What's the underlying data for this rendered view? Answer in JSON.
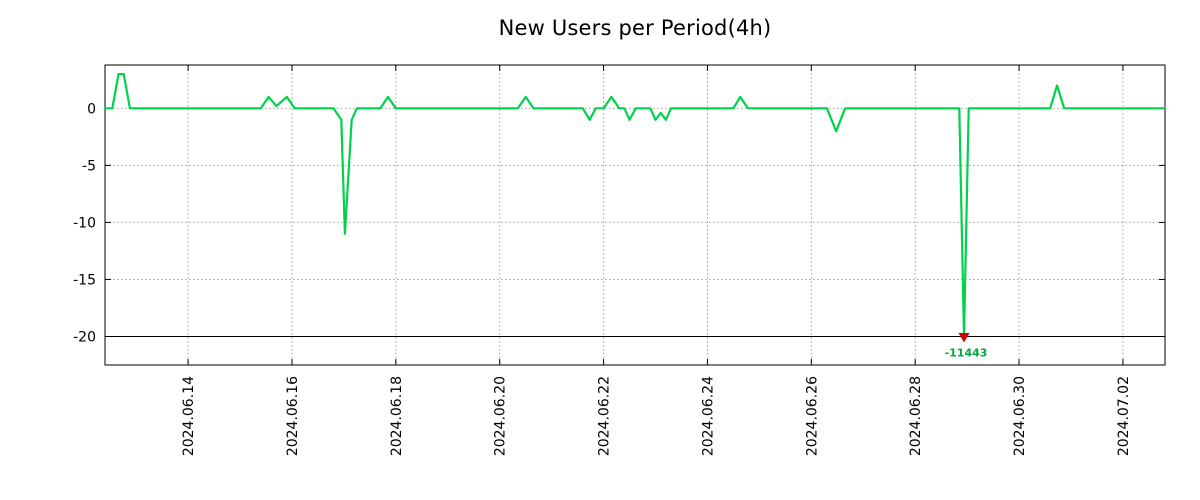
{
  "chart_data": {
    "type": "line",
    "title": "New Users per Period(4h)",
    "x_axis": {
      "unit": "days since 2024-06-13 00:00, 4h sampling period",
      "lim": [
        -0.6,
        19.81
      ],
      "ticks": [
        {
          "pos": 1,
          "label": "2024.06.14"
        },
        {
          "pos": 3,
          "label": "2024.06.16"
        },
        {
          "pos": 5,
          "label": "2024.06.18"
        },
        {
          "pos": 7,
          "label": "2024.06.20"
        },
        {
          "pos": 9,
          "label": "2024.06.22"
        },
        {
          "pos": 11,
          "label": "2024.06.24"
        },
        {
          "pos": 13,
          "label": "2024.06.26"
        },
        {
          "pos": 15,
          "label": "2024.06.28"
        },
        {
          "pos": 17,
          "label": "2024.06.30"
        },
        {
          "pos": 19,
          "label": "2024.07.02"
        }
      ]
    },
    "y_axis": {
      "lim": [
        -22.5,
        3.8
      ],
      "baseline": -20,
      "ticks": [
        {
          "pos": 0,
          "label": "0"
        },
        {
          "pos": -5,
          "label": "-5"
        },
        {
          "pos": -10,
          "label": "-10"
        },
        {
          "pos": -15,
          "label": "-15"
        },
        {
          "pos": -20,
          "label": "-20"
        }
      ]
    },
    "grid": {
      "style": "dotted",
      "color": "#a0a0a0"
    },
    "series": [
      {
        "name": "New Users",
        "color": "#00d24b",
        "width": 2.2,
        "points": [
          [
            -0.6,
            0
          ],
          [
            -0.46,
            0
          ],
          [
            -0.34,
            3
          ],
          [
            -0.24,
            3
          ],
          [
            -0.12,
            0
          ],
          [
            2.4,
            0
          ],
          [
            2.55,
            1
          ],
          [
            2.7,
            0.2
          ],
          [
            2.9,
            1
          ],
          [
            3.05,
            0
          ],
          [
            3.8,
            0
          ],
          [
            3.95,
            -1
          ],
          [
            4.02,
            -11
          ],
          [
            4.15,
            -1
          ],
          [
            4.25,
            0
          ],
          [
            4.7,
            0
          ],
          [
            4.85,
            1
          ],
          [
            5.0,
            0
          ],
          [
            7.35,
            0
          ],
          [
            7.5,
            1
          ],
          [
            7.65,
            0
          ],
          [
            8.6,
            0
          ],
          [
            8.73,
            -1
          ],
          [
            8.85,
            0
          ],
          [
            9.0,
            0
          ],
          [
            9.15,
            1
          ],
          [
            9.3,
            0
          ],
          [
            9.4,
            0
          ],
          [
            9.5,
            -1
          ],
          [
            9.62,
            0
          ],
          [
            9.9,
            0
          ],
          [
            10.0,
            -1
          ],
          [
            10.1,
            -0.4
          ],
          [
            10.2,
            -1
          ],
          [
            10.3,
            0
          ],
          [
            11.5,
            0
          ],
          [
            11.63,
            1
          ],
          [
            11.78,
            0
          ],
          [
            13.3,
            0
          ],
          [
            13.48,
            -2
          ],
          [
            13.65,
            0
          ],
          [
            15.85,
            0
          ],
          [
            15.94,
            -20
          ],
          [
            16.03,
            0
          ],
          [
            17.6,
            0
          ],
          [
            17.73,
            2
          ],
          [
            17.87,
            0
          ],
          [
            19.81,
            0
          ]
        ]
      }
    ],
    "annotation": {
      "x": 15.94,
      "y": -20,
      "marker": "triangle-down",
      "marker_color": "#d40000",
      "label": "-11443",
      "label_color": "#00a83c",
      "clipped_value": -11443
    }
  }
}
